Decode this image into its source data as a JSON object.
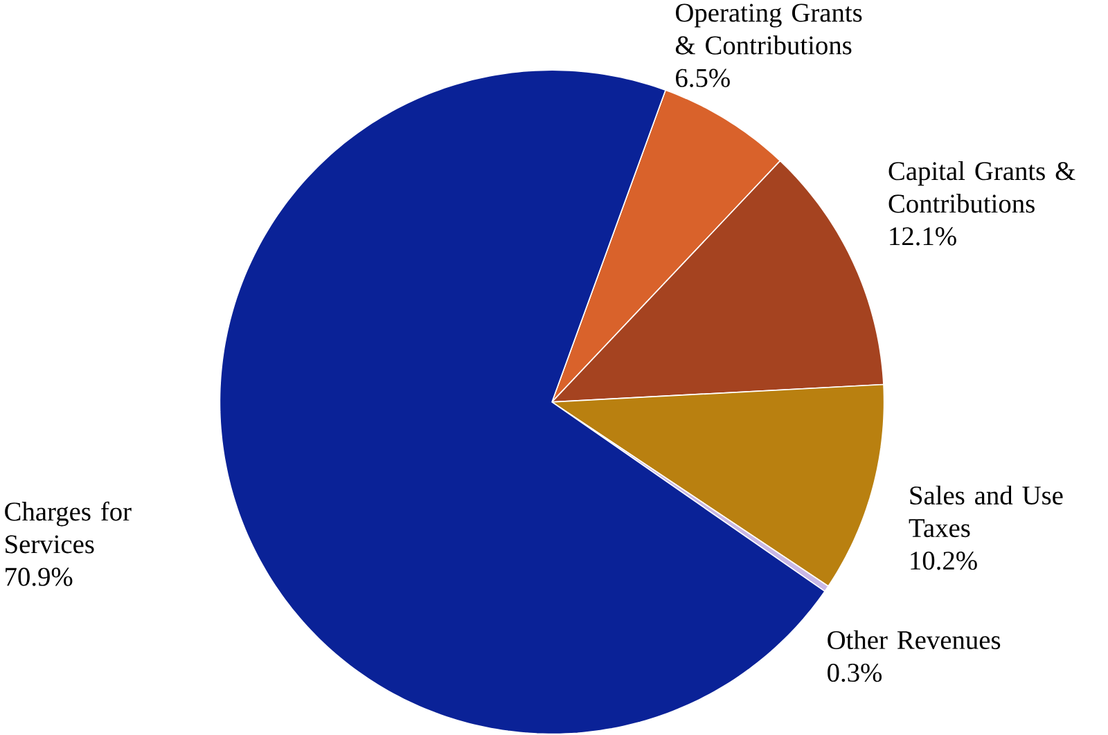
{
  "chart_data": {
    "type": "pie",
    "categories": [
      "Operating Grants & Contributions",
      "Capital Grants & Contributions",
      "Sales and Use Taxes",
      "Other Revenues",
      "Charges for Services"
    ],
    "values": [
      6.5,
      12.1,
      10.2,
      0.3,
      70.9
    ],
    "value_labels": [
      "6.5%",
      "12.1%",
      "10.2%",
      "0.3%",
      "70.9%"
    ],
    "colors": [
      "#d9622b",
      "#a54320",
      "#b98010",
      "#c9b8e6",
      "#0a2297"
    ]
  }
}
